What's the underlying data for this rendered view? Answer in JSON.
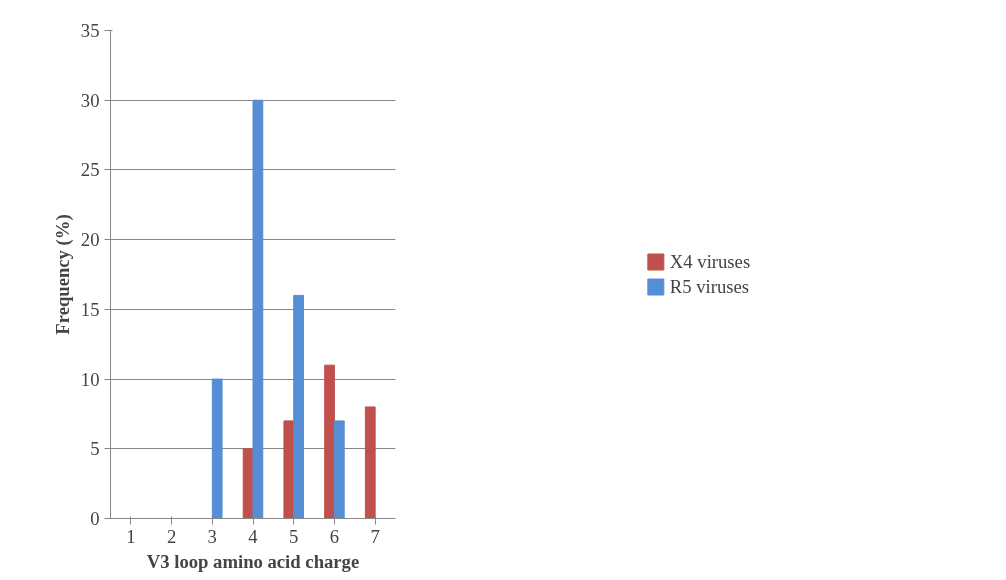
{
  "chart_data": {
    "type": "bar",
    "xlabel": "V3 loop amino acid charge",
    "ylabel": "Frequency (%)",
    "categories": [
      "1",
      "2",
      "3",
      "4",
      "5",
      "6",
      "7"
    ],
    "series": [
      {
        "name": "X4 viruses",
        "color": "#c0504d",
        "values": [
          0,
          0,
          0,
          5,
          7,
          11,
          8
        ]
      },
      {
        "name": "R5 viruses",
        "color": "#558ed5",
        "values": [
          0,
          0,
          10,
          30,
          16,
          7,
          0
        ]
      }
    ],
    "ylim": [
      0,
      35
    ],
    "yticks": [
      0,
      5,
      10,
      15,
      20,
      25,
      30,
      35
    ],
    "grid": "y",
    "legend": "right"
  }
}
